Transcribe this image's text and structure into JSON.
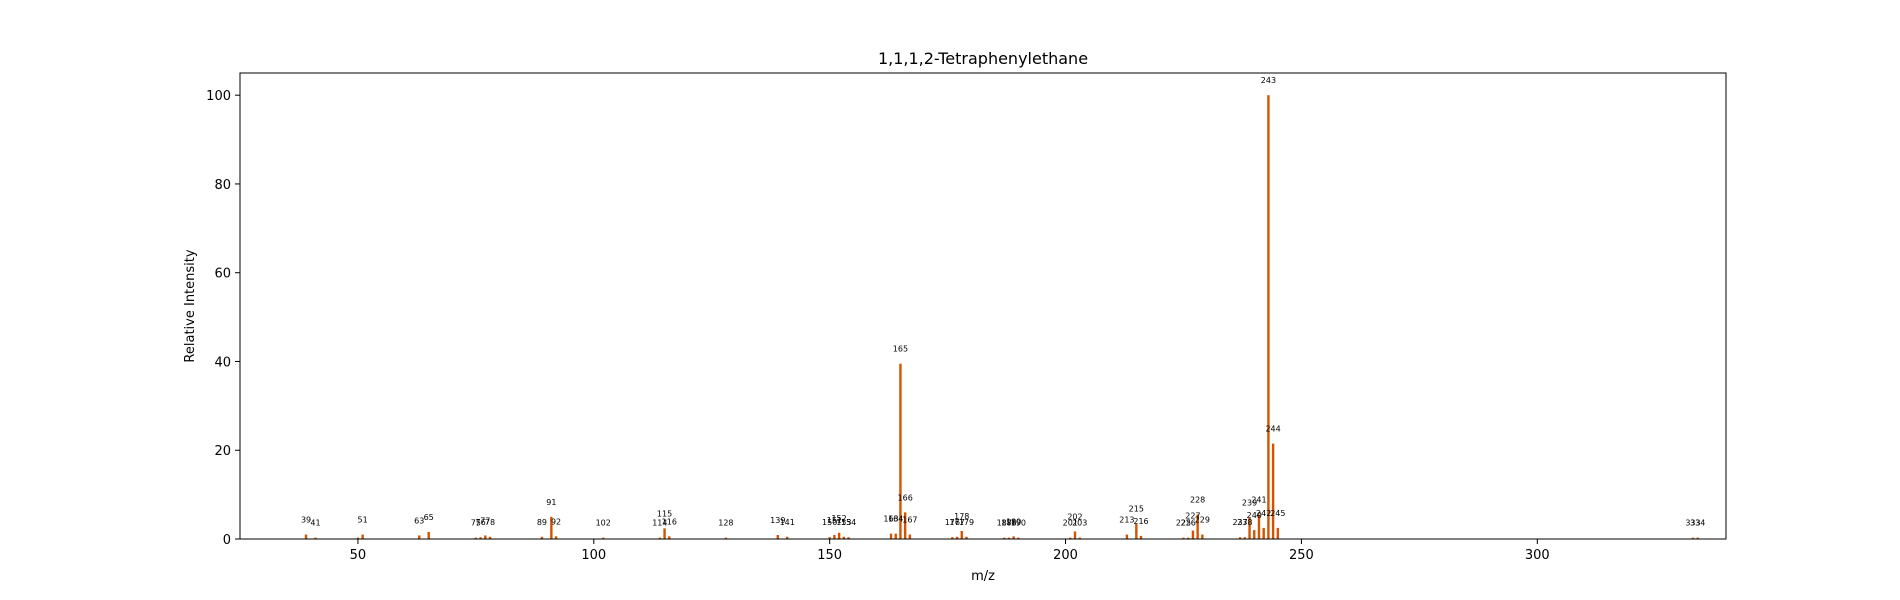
{
  "chart_data": {
    "type": "bar",
    "title": "1,1,1,2-Tetraphenylethane",
    "xlabel": "m/z",
    "ylabel": "Relative Intensity",
    "xlim": [
      25,
      340
    ],
    "ylim": [
      0,
      105
    ],
    "xticks": [
      50,
      100,
      150,
      200,
      250,
      300
    ],
    "yticks": [
      0,
      20,
      40,
      60,
      80,
      100
    ],
    "bar_color": "#d35400",
    "grid": false,
    "peaks": [
      {
        "mz": 39,
        "intensity": 1.0,
        "label": "39"
      },
      {
        "mz": 41,
        "intensity": 0.3,
        "label": "41"
      },
      {
        "mz": 50,
        "intensity": 0.3,
        "label": ""
      },
      {
        "mz": 51,
        "intensity": 1.0,
        "label": "51"
      },
      {
        "mz": 63,
        "intensity": 0.8,
        "label": "63"
      },
      {
        "mz": 65,
        "intensity": 1.6,
        "label": "65"
      },
      {
        "mz": 75,
        "intensity": 0.3,
        "label": "75"
      },
      {
        "mz": 76,
        "intensity": 0.4,
        "label": "76"
      },
      {
        "mz": 77,
        "intensity": 0.8,
        "label": "77"
      },
      {
        "mz": 78,
        "intensity": 0.5,
        "label": "78"
      },
      {
        "mz": 89,
        "intensity": 0.5,
        "label": "89"
      },
      {
        "mz": 91,
        "intensity": 5.0,
        "label": "91"
      },
      {
        "mz": 92,
        "intensity": 0.6,
        "label": "92"
      },
      {
        "mz": 102,
        "intensity": 0.3,
        "label": "102"
      },
      {
        "mz": 114,
        "intensity": 0.3,
        "label": "114"
      },
      {
        "mz": 115,
        "intensity": 2.4,
        "label": "115"
      },
      {
        "mz": 116,
        "intensity": 0.6,
        "label": "116"
      },
      {
        "mz": 128,
        "intensity": 0.3,
        "label": "128"
      },
      {
        "mz": 139,
        "intensity": 0.9,
        "label": "139"
      },
      {
        "mz": 141,
        "intensity": 0.5,
        "label": "141"
      },
      {
        "mz": 150,
        "intensity": 0.4,
        "label": "150"
      },
      {
        "mz": 151,
        "intensity": 0.9,
        "label": "151"
      },
      {
        "mz": 152,
        "intensity": 1.4,
        "label": "152"
      },
      {
        "mz": 153,
        "intensity": 0.5,
        "label": "153"
      },
      {
        "mz": 154,
        "intensity": 0.4,
        "label": "154"
      },
      {
        "mz": 163,
        "intensity": 1.2,
        "label": "163"
      },
      {
        "mz": 164,
        "intensity": 1.2,
        "label": "164"
      },
      {
        "mz": 165,
        "intensity": 39.5,
        "label": "165"
      },
      {
        "mz": 166,
        "intensity": 6.0,
        "label": "166"
      },
      {
        "mz": 167,
        "intensity": 1.0,
        "label": "167"
      },
      {
        "mz": 176,
        "intensity": 0.4,
        "label": "176"
      },
      {
        "mz": 177,
        "intensity": 0.5,
        "label": "177"
      },
      {
        "mz": 178,
        "intensity": 1.8,
        "label": "178"
      },
      {
        "mz": 179,
        "intensity": 0.5,
        "label": "179"
      },
      {
        "mz": 187,
        "intensity": 0.3,
        "label": "187"
      },
      {
        "mz": 188,
        "intensity": 0.3,
        "label": "188"
      },
      {
        "mz": 189,
        "intensity": 0.6,
        "label": "189"
      },
      {
        "mz": 190,
        "intensity": 0.3,
        "label": "190"
      },
      {
        "mz": 201,
        "intensity": 0.3,
        "label": "201"
      },
      {
        "mz": 202,
        "intensity": 1.7,
        "label": "202"
      },
      {
        "mz": 203,
        "intensity": 0.3,
        "label": "203"
      },
      {
        "mz": 213,
        "intensity": 1.0,
        "label": "213"
      },
      {
        "mz": 215,
        "intensity": 3.5,
        "label": "215"
      },
      {
        "mz": 216,
        "intensity": 0.7,
        "label": "216"
      },
      {
        "mz": 225,
        "intensity": 0.3,
        "label": "225"
      },
      {
        "mz": 226,
        "intensity": 0.3,
        "label": "226"
      },
      {
        "mz": 227,
        "intensity": 1.9,
        "label": "227"
      },
      {
        "mz": 228,
        "intensity": 5.5,
        "label": "228"
      },
      {
        "mz": 229,
        "intensity": 1.0,
        "label": "229"
      },
      {
        "mz": 237,
        "intensity": 0.4,
        "label": "237"
      },
      {
        "mz": 238,
        "intensity": 0.4,
        "label": "238"
      },
      {
        "mz": 239,
        "intensity": 4.8,
        "label": "239"
      },
      {
        "mz": 240,
        "intensity": 2.0,
        "label": "240"
      },
      {
        "mz": 241,
        "intensity": 5.5,
        "label": "241"
      },
      {
        "mz": 242,
        "intensity": 2.5,
        "label": "242"
      },
      {
        "mz": 243,
        "intensity": 100.0,
        "label": "243"
      },
      {
        "mz": 244,
        "intensity": 21.5,
        "label": "244"
      },
      {
        "mz": 245,
        "intensity": 2.5,
        "label": "245"
      },
      {
        "mz": 333,
        "intensity": 0.3,
        "label": "333"
      },
      {
        "mz": 334,
        "intensity": 0.3,
        "label": "334"
      }
    ]
  }
}
